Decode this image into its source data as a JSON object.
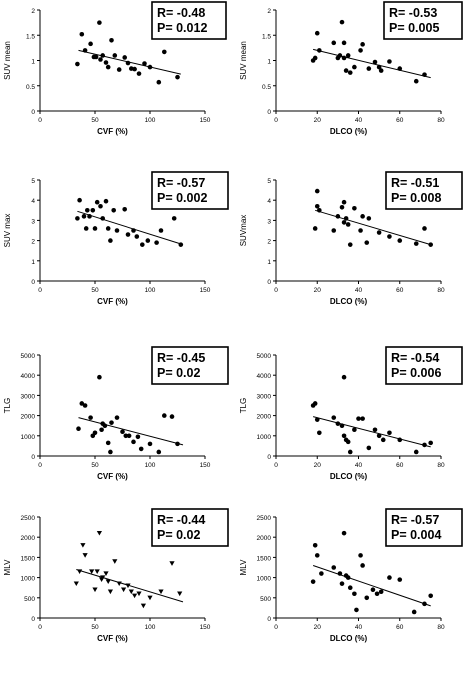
{
  "chart_data": [
    {
      "type": "scatter",
      "xlabel": "CVF (%)",
      "ylabel": "SUV mean",
      "xlim": [
        0,
        150
      ],
      "ylim": [
        0,
        2
      ],
      "xticks": [
        "0",
        "50",
        "100",
        "150"
      ],
      "yticks": [
        "0",
        "0.5",
        "1",
        "1.5",
        "2"
      ],
      "stats": [
        "R= -0.48",
        "P= 0.012"
      ],
      "marker": "circle",
      "trend": [
        [
          35,
          1.2
        ],
        [
          128,
          0.73
        ]
      ],
      "points": [
        [
          34,
          0.93
        ],
        [
          38,
          1.52
        ],
        [
          41,
          1.2
        ],
        [
          46,
          1.33
        ],
        [
          49,
          1.07
        ],
        [
          51,
          1.07
        ],
        [
          54,
          1.75
        ],
        [
          55,
          1.02
        ],
        [
          57,
          1.1
        ],
        [
          60,
          0.96
        ],
        [
          62,
          0.87
        ],
        [
          65,
          1.4
        ],
        [
          68,
          1.1
        ],
        [
          72,
          0.82
        ],
        [
          77,
          1.06
        ],
        [
          80,
          0.95
        ],
        [
          83,
          0.84
        ],
        [
          86,
          0.83
        ],
        [
          90,
          0.74
        ],
        [
          95,
          0.94
        ],
        [
          100,
          0.87
        ],
        [
          108,
          0.57
        ],
        [
          113,
          1.17
        ],
        [
          125,
          0.67
        ]
      ]
    },
    {
      "type": "scatter",
      "xlabel": "DLCO (%)",
      "ylabel": "SUV mean",
      "xlim": [
        0,
        80
      ],
      "ylim": [
        0,
        2
      ],
      "xticks": [
        "0",
        "20",
        "40",
        "60",
        "80"
      ],
      "yticks": [
        "0",
        "0.5",
        "1",
        "1.5",
        "2"
      ],
      "stats": [
        "R= -0.53",
        "P= 0.005"
      ],
      "marker": "circle",
      "trend": [
        [
          18,
          1.22
        ],
        [
          75,
          0.66
        ]
      ],
      "points": [
        [
          18,
          1.0
        ],
        [
          19,
          1.05
        ],
        [
          20,
          1.54
        ],
        [
          21,
          1.2
        ],
        [
          28,
          1.35
        ],
        [
          30,
          1.05
        ],
        [
          31,
          1.1
        ],
        [
          32,
          1.76
        ],
        [
          33,
          1.05
        ],
        [
          33,
          1.35
        ],
        [
          34,
          0.8
        ],
        [
          35,
          1.1
        ],
        [
          36,
          0.76
        ],
        [
          38,
          0.87
        ],
        [
          41,
          1.2
        ],
        [
          42,
          1.32
        ],
        [
          45,
          0.84
        ],
        [
          48,
          0.97
        ],
        [
          50,
          0.87
        ],
        [
          51,
          0.8
        ],
        [
          55,
          0.98
        ],
        [
          60,
          0.84
        ],
        [
          68,
          0.59
        ],
        [
          72,
          0.72
        ]
      ]
    },
    {
      "type": "scatter",
      "xlabel": "CVF (%)",
      "ylabel": "SUV max",
      "xlim": [
        0,
        150
      ],
      "ylim": [
        0,
        5
      ],
      "xticks": [
        "0",
        "50",
        "100",
        "150"
      ],
      "yticks": [
        "0",
        "1",
        "2",
        "3",
        "4",
        "5"
      ],
      "stats": [
        "R= -0.57",
        "P= 0.002"
      ],
      "marker": "circle",
      "trend": [
        [
          34,
          3.45
        ],
        [
          130,
          1.8
        ]
      ],
      "points": [
        [
          34,
          3.1
        ],
        [
          36,
          4.0
        ],
        [
          40,
          3.2
        ],
        [
          42,
          2.6
        ],
        [
          43,
          3.5
        ],
        [
          45,
          3.2
        ],
        [
          48,
          3.5
        ],
        [
          50,
          2.6
        ],
        [
          52,
          3.9
        ],
        [
          55,
          3.7
        ],
        [
          57,
          3.1
        ],
        [
          60,
          3.95
        ],
        [
          62,
          2.6
        ],
        [
          64,
          2.0
        ],
        [
          67,
          3.5
        ],
        [
          70,
          2.5
        ],
        [
          77,
          3.55
        ],
        [
          80,
          2.3
        ],
        [
          85,
          2.5
        ],
        [
          88,
          2.2
        ],
        [
          93,
          1.8
        ],
        [
          98,
          2.0
        ],
        [
          106,
          1.9
        ],
        [
          110,
          2.5
        ],
        [
          122,
          3.1
        ],
        [
          128,
          1.8
        ]
      ]
    },
    {
      "type": "scatter",
      "xlabel": "DLCO (%)",
      "ylabel": "SUVmax",
      "xlim": [
        0,
        80
      ],
      "ylim": [
        0,
        5
      ],
      "xticks": [
        "0",
        "20",
        "40",
        "60",
        "80"
      ],
      "yticks": [
        "0",
        "1",
        "2",
        "3",
        "4",
        "5"
      ],
      "stats": [
        "R= -0.51",
        "P= 0.008"
      ],
      "marker": "circle",
      "trend": [
        [
          19,
          3.5
        ],
        [
          75,
          1.8
        ]
      ],
      "points": [
        [
          19,
          2.6
        ],
        [
          20,
          3.7
        ],
        [
          20,
          4.45
        ],
        [
          21,
          3.5
        ],
        [
          28,
          2.5
        ],
        [
          30,
          3.2
        ],
        [
          32,
          3.65
        ],
        [
          33,
          3.9
        ],
        [
          33,
          2.9
        ],
        [
          34,
          3.1
        ],
        [
          35,
          2.8
        ],
        [
          36,
          1.8
        ],
        [
          38,
          3.6
        ],
        [
          41,
          2.5
        ],
        [
          42,
          3.2
        ],
        [
          44,
          1.9
        ],
        [
          45,
          3.1
        ],
        [
          50,
          2.4
        ],
        [
          55,
          2.2
        ],
        [
          60,
          2.0
        ],
        [
          68,
          1.85
        ],
        [
          72,
          2.6
        ],
        [
          75,
          1.8
        ]
      ]
    },
    {
      "type": "scatter",
      "xlabel": "CVF (%)",
      "ylabel": "TLG",
      "xlim": [
        0,
        150
      ],
      "ylim": [
        0,
        5000
      ],
      "xticks": [
        "0",
        "50",
        "100",
        "150"
      ],
      "yticks": [
        "0",
        "1000",
        "2000",
        "3000",
        "4000",
        "5000"
      ],
      "stats": [
        "R= -0.45",
        "P= 0.02"
      ],
      "marker": "circle",
      "trend": [
        [
          35,
          1900
        ],
        [
          130,
          550
        ]
      ],
      "points": [
        [
          35,
          1350
        ],
        [
          38,
          2600
        ],
        [
          41,
          2500
        ],
        [
          46,
          1900
        ],
        [
          48,
          1000
        ],
        [
          50,
          1150
        ],
        [
          54,
          3900
        ],
        [
          56,
          1300
        ],
        [
          57,
          1600
        ],
        [
          59,
          1500
        ],
        [
          62,
          650
        ],
        [
          64,
          200
        ],
        [
          65,
          1650
        ],
        [
          70,
          1900
        ],
        [
          75,
          1200
        ],
        [
          78,
          1000
        ],
        [
          81,
          1000
        ],
        [
          85,
          700
        ],
        [
          89,
          950
        ],
        [
          92,
          350
        ],
        [
          100,
          600
        ],
        [
          108,
          200
        ],
        [
          113,
          2000
        ],
        [
          120,
          1950
        ],
        [
          125,
          600
        ]
      ]
    },
    {
      "type": "scatter",
      "xlabel": "DLCO (%)",
      "ylabel": "TLG",
      "xlim": [
        0,
        80
      ],
      "ylim": [
        0,
        5000
      ],
      "xticks": [
        "0",
        "20",
        "40",
        "60",
        "80"
      ],
      "yticks": [
        "0",
        "1000",
        "2000",
        "3000",
        "4000",
        "5000"
      ],
      "stats": [
        "R= -0.54",
        "P= 0.006"
      ],
      "marker": "circle",
      "trend": [
        [
          18,
          1950
        ],
        [
          75,
          450
        ]
      ],
      "points": [
        [
          18,
          2500
        ],
        [
          19,
          2600
        ],
        [
          20,
          1800
        ],
        [
          21,
          1150
        ],
        [
          28,
          1900
        ],
        [
          30,
          1600
        ],
        [
          32,
          1500
        ],
        [
          33,
          3900
        ],
        [
          33,
          1000
        ],
        [
          34,
          800
        ],
        [
          35,
          700
        ],
        [
          36,
          200
        ],
        [
          38,
          1300
        ],
        [
          40,
          1850
        ],
        [
          42,
          1850
        ],
        [
          45,
          400
        ],
        [
          48,
          1300
        ],
        [
          50,
          1000
        ],
        [
          52,
          800
        ],
        [
          55,
          1150
        ],
        [
          60,
          800
        ],
        [
          68,
          200
        ],
        [
          72,
          550
        ],
        [
          75,
          650
        ]
      ]
    },
    {
      "type": "scatter",
      "xlabel": "CVF (%)",
      "ylabel": "MLV",
      "xlim": [
        0,
        150
      ],
      "ylim": [
        0,
        2500
      ],
      "xticks": [
        "0",
        "50",
        "100",
        "150"
      ],
      "yticks": [
        "0",
        "500",
        "1000",
        "1500",
        "2000",
        "2500"
      ],
      "stats": [
        "R= -0.44",
        "P= 0.02"
      ],
      "marker": "triangle-down",
      "trend": [
        [
          33,
          1200
        ],
        [
          130,
          400
        ]
      ],
      "points": [
        [
          33,
          850
        ],
        [
          36,
          1150
        ],
        [
          39,
          1800
        ],
        [
          41,
          1550
        ],
        [
          47,
          1150
        ],
        [
          50,
          700
        ],
        [
          52,
          1150
        ],
        [
          54,
          2100
        ],
        [
          56,
          950
        ],
        [
          57,
          1000
        ],
        [
          60,
          1100
        ],
        [
          62,
          900
        ],
        [
          64,
          650
        ],
        [
          68,
          1400
        ],
        [
          72,
          850
        ],
        [
          76,
          700
        ],
        [
          80,
          800
        ],
        [
          83,
          650
        ],
        [
          86,
          550
        ],
        [
          90,
          600
        ],
        [
          94,
          300
        ],
        [
          100,
          500
        ],
        [
          110,
          650
        ],
        [
          120,
          1350
        ],
        [
          127,
          600
        ]
      ]
    },
    {
      "type": "scatter",
      "xlabel": "DLCO (%)",
      "ylabel": "MLV",
      "xlim": [
        0,
        80
      ],
      "ylim": [
        0,
        2500
      ],
      "xticks": [
        "0",
        "20",
        "40",
        "60",
        "80"
      ],
      "yticks": [
        "0",
        "500",
        "1000",
        "1500",
        "2000",
        "2500"
      ],
      "stats": [
        "R= -0.57",
        "P= 0.004"
      ],
      "marker": "circle",
      "trend": [
        [
          18,
          1300
        ],
        [
          75,
          300
        ]
      ],
      "points": [
        [
          18,
          900
        ],
        [
          19,
          1800
        ],
        [
          20,
          1550
        ],
        [
          22,
          1100
        ],
        [
          28,
          1250
        ],
        [
          31,
          1100
        ],
        [
          32,
          850
        ],
        [
          33,
          2100
        ],
        [
          34,
          1050
        ],
        [
          35,
          1000
        ],
        [
          36,
          750
        ],
        [
          38,
          600
        ],
        [
          39,
          200
        ],
        [
          41,
          1550
        ],
        [
          42,
          1300
        ],
        [
          44,
          500
        ],
        [
          47,
          700
        ],
        [
          49,
          600
        ],
        [
          51,
          650
        ],
        [
          55,
          1000
        ],
        [
          60,
          950
        ],
        [
          67,
          150
        ],
        [
          72,
          350
        ],
        [
          75,
          550
        ]
      ]
    }
  ]
}
